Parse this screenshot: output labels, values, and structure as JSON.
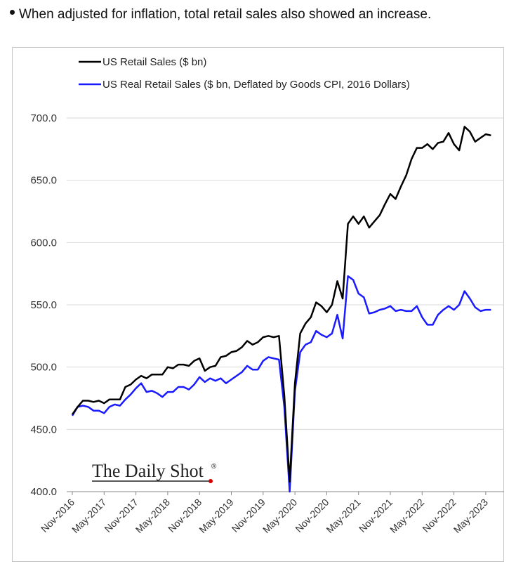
{
  "header": {
    "bullet_text": "When adjusted for inflation, total retail sales also showed an increase."
  },
  "logo": {
    "text": "The Daily Shot",
    "mark": "®"
  },
  "chart_data": {
    "type": "line",
    "title": "",
    "xlabel": "",
    "ylabel": "",
    "ylim": [
      400,
      700
    ],
    "y_ticks": [
      "400.0",
      "450.0",
      "500.0",
      "550.0",
      "600.0",
      "650.0",
      "700.0"
    ],
    "x_ticks": [
      "Nov-2016",
      "May-2017",
      "Nov-2017",
      "May-2018",
      "Nov-2018",
      "May-2019",
      "Nov-2019",
      "May-2020",
      "Nov-2020",
      "May-2021",
      "Nov-2021",
      "May-2022",
      "Nov-2022",
      "May-2023"
    ],
    "grid": true,
    "legend_position": "top-left",
    "x": [
      "Nov-2016",
      "Dec-2016",
      "Jan-2017",
      "Feb-2017",
      "Mar-2017",
      "Apr-2017",
      "May-2017",
      "Jun-2017",
      "Jul-2017",
      "Aug-2017",
      "Sep-2017",
      "Oct-2017",
      "Nov-2017",
      "Dec-2017",
      "Jan-2018",
      "Feb-2018",
      "Mar-2018",
      "Apr-2018",
      "May-2018",
      "Jun-2018",
      "Jul-2018",
      "Aug-2018",
      "Sep-2018",
      "Oct-2018",
      "Nov-2018",
      "Dec-2018",
      "Jan-2019",
      "Feb-2019",
      "Mar-2019",
      "Apr-2019",
      "May-2019",
      "Jun-2019",
      "Jul-2019",
      "Aug-2019",
      "Sep-2019",
      "Oct-2019",
      "Nov-2019",
      "Dec-2019",
      "Jan-2020",
      "Feb-2020",
      "Mar-2020",
      "Apr-2020",
      "May-2020",
      "Jun-2020",
      "Jul-2020",
      "Aug-2020",
      "Sep-2020",
      "Oct-2020",
      "Nov-2020",
      "Dec-2020",
      "Jan-2021",
      "Feb-2021",
      "Mar-2021",
      "Apr-2021",
      "May-2021",
      "Jun-2021",
      "Jul-2021",
      "Aug-2021",
      "Sep-2021",
      "Oct-2021",
      "Nov-2021",
      "Dec-2021",
      "Jan-2022",
      "Feb-2022",
      "Mar-2022",
      "Apr-2022",
      "May-2022",
      "Jun-2022",
      "Jul-2022",
      "Aug-2022",
      "Sep-2022",
      "Oct-2022",
      "Nov-2022",
      "Dec-2022",
      "Jan-2023",
      "Feb-2023",
      "Mar-2023",
      "Apr-2023",
      "May-2023",
      "Jun-2023"
    ],
    "series": [
      {
        "name": "US Retail Sales ($ bn)",
        "color": "#000000",
        "values": [
          462,
          468,
          473,
          473,
          472,
          473,
          471,
          474,
          474,
          474,
          484,
          486,
          490,
          493,
          491,
          494,
          494,
          494,
          500,
          499,
          502,
          502,
          501,
          505,
          507,
          497,
          500,
          501,
          508,
          509,
          512,
          513,
          516,
          521,
          518,
          520,
          524,
          525,
          524,
          525,
          477,
          408,
          487,
          527,
          535,
          540,
          552,
          549,
          544,
          550,
          569,
          555,
          615,
          621,
          615,
          621,
          612,
          617,
          622,
          631,
          639,
          635,
          645,
          654,
          667,
          676,
          676,
          679,
          675,
          680,
          681,
          688,
          679,
          674,
          693,
          689,
          681,
          684,
          687,
          686
        ],
        "marker": "none"
      },
      {
        "name": "US Real Retail Sales ($ bn, Deflated by Goods CPI, 2016 Dollars)",
        "color": "#1a1aff",
        "values": [
          461,
          468,
          469,
          468,
          465,
          465,
          463,
          468,
          470,
          469,
          474,
          478,
          483,
          487,
          480,
          481,
          479,
          476,
          480,
          480,
          484,
          484,
          482,
          486,
          492,
          488,
          491,
          489,
          491,
          487,
          490,
          493,
          496,
          501,
          498,
          498,
          505,
          508,
          507,
          506,
          468,
          400,
          481,
          512,
          518,
          520,
          529,
          526,
          524,
          527,
          542,
          523,
          573,
          570,
          559,
          556,
          543,
          544,
          546,
          547,
          549,
          545,
          546,
          545,
          545,
          549,
          540,
          534,
          534,
          542,
          546,
          549,
          546,
          550,
          561,
          555,
          548,
          545,
          546,
          546
        ],
        "marker": "none"
      }
    ]
  }
}
